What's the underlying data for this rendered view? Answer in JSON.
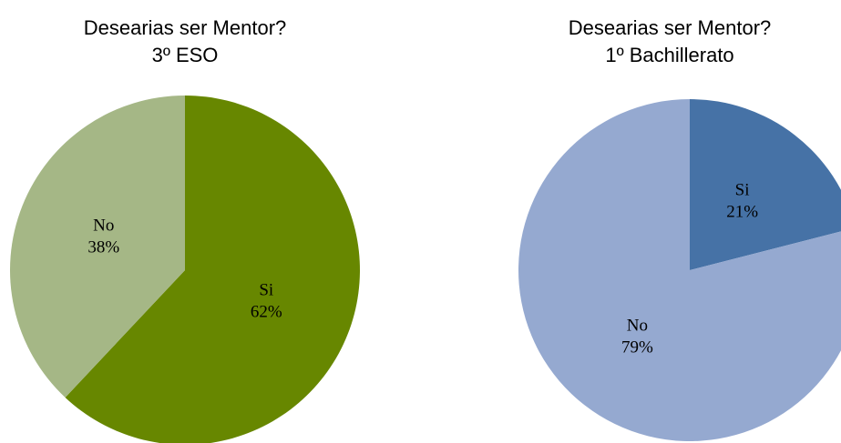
{
  "chart_data": [
    {
      "type": "pie",
      "title": "Desearias ser Mentor?",
      "subtitle": "3º ESO",
      "categories": [
        "Si",
        "No"
      ],
      "values": [
        62,
        38
      ],
      "value_labels": [
        "62%",
        "38%"
      ],
      "colors": [
        "#678700",
        "#a5b786"
      ]
    },
    {
      "type": "pie",
      "title": "Desearias ser Mentor?",
      "subtitle": "1º Bachillerato",
      "categories": [
        "Si",
        "No"
      ],
      "values": [
        21,
        79
      ],
      "value_labels": [
        "21%",
        "79%"
      ],
      "colors": [
        "#4672a6",
        "#95a9d0"
      ]
    }
  ]
}
